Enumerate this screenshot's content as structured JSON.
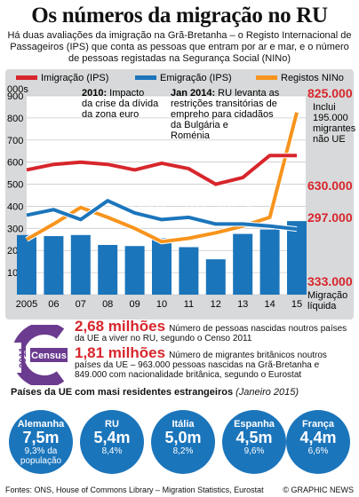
{
  "title": "Os números da migração no RU",
  "intro": "Há duas avaliações da imigração na Grã-Bretanha – o Registo Internacional de Passageiros (IPS) que conta as pessoas que entram por ar e mar, e o número de pessoas registadas na Segurança Social (NINo)",
  "chart_data": {
    "type": "line",
    "title": "",
    "ylabel": "000s",
    "xlabel": "",
    "x": [
      2005,
      2006,
      2007,
      2008,
      2009,
      2010,
      2011,
      2012,
      2013,
      2014,
      2015
    ],
    "x_tick_labels": [
      "2005",
      "06",
      "07",
      "08",
      "09",
      "10",
      "11",
      "12",
      "13",
      "14",
      "15"
    ],
    "y_ticks": [
      0,
      100,
      200,
      300,
      400,
      500,
      600,
      700,
      800,
      900
    ],
    "ylim": [
      0,
      900
    ],
    "grid": true,
    "legend_position": "top",
    "series": [
      {
        "name": "Imigração (IPS)",
        "color": "#d7262c",
        "values": [
          565,
          590,
          600,
          590,
          565,
          595,
          570,
          500,
          530,
          630,
          630
        ]
      },
      {
        "name": "Emigração (IPS)",
        "color": "#1b75bb",
        "values": [
          360,
          385,
          340,
          425,
          370,
          340,
          350,
          320,
          320,
          310,
          297
        ]
      },
      {
        "name": "Registos NINo",
        "color": "#f7941d",
        "values": [
          250,
          320,
          395,
          350,
          300,
          240,
          255,
          280,
          310,
          350,
          825
        ]
      }
    ],
    "bars": {
      "name": "Migração líquida",
      "color": "#1b75bb",
      "values": [
        270,
        265,
        270,
        225,
        220,
        255,
        215,
        160,
        275,
        295,
        333
      ]
    },
    "annotations": [
      {
        "label": "2010:",
        "text": "Impacto da crise da dívida da zona euro"
      },
      {
        "label": "Jan 2014:",
        "text": "RU levanta as restrições transitórias de empreho para cidadãos da Bulgária e Roménia"
      }
    ],
    "end_labels": {
      "nino_value": "825.000",
      "nino_note": "Inclui 195.000 migrantes não UE",
      "imigracao_value": "630.000",
      "emigracao_value": "297.000",
      "liquida_value": "333.000",
      "liquida_label": "Migração líquida"
    },
    "watermark": "GRAPHIC NEWS"
  },
  "census": {
    "year": "2011",
    "label": "Census",
    "stat1_big": "2,68 milhões",
    "stat1_text": "Número de pessoas nascidas noutros países da UE a viver no RU, segundo o Censo 2011",
    "stat2_big": "1,81 milhões",
    "stat2_text": "Número de migrantes britânicos noutros países da UE – 963.000 pessoas nascidas na Grã-Bretanha e 849.000 com nacionalidade britânica, segundo o Eurostat"
  },
  "countries_title": "Países da UE com masi residentes estrangeiros",
  "countries_date": "(Janeiro 2015)",
  "countries": [
    {
      "name": "Alemanha",
      "value": "7,5m",
      "pct": "9,3% da população"
    },
    {
      "name": "RU",
      "value": "5,4m",
      "pct": "8,4%"
    },
    {
      "name": "Itália",
      "value": "5,0m",
      "pct": "8,2%"
    },
    {
      "name": "Espanha",
      "value": "4,5m",
      "pct": "9,6%"
    },
    {
      "name": "França",
      "value": "4,4m",
      "pct": "6,6%"
    }
  ],
  "footer": {
    "sources": "Fontes: ONS, House of Commons Library – Migration Statistics, Eurostat",
    "credit": "© GRAPHIC NEWS"
  }
}
